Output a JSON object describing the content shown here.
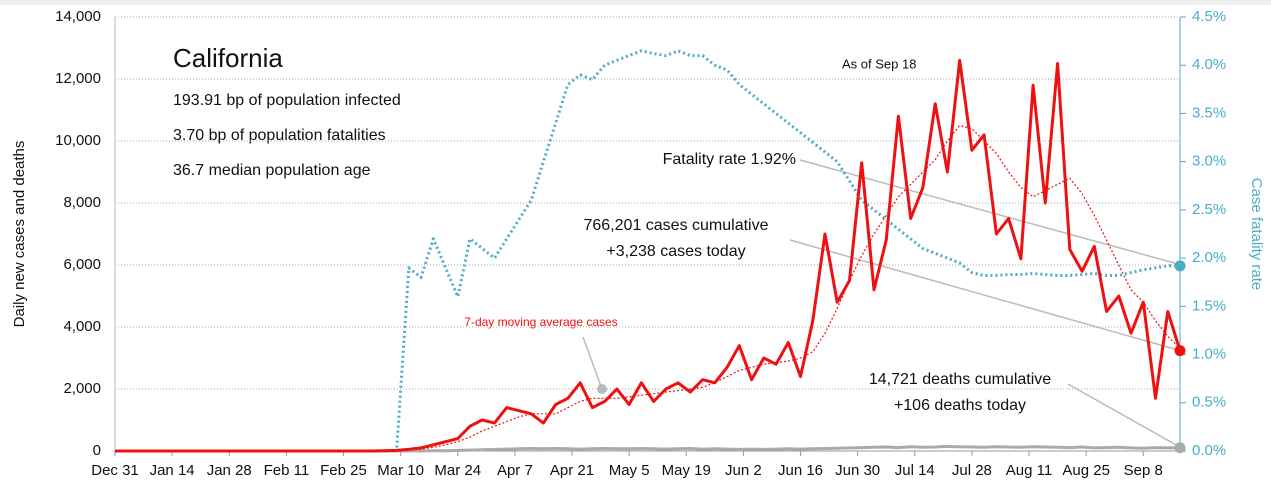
{
  "chart_data": {
    "type": "line",
    "title": "California",
    "subtitle_lines": [
      "193.91 bp of population infected",
      "3.70 bp of population fatalities",
      "36.7 median population age"
    ],
    "as_of": "As of Sep 18",
    "annotations": {
      "fatality": "Fatality rate 1.92%",
      "cases_cum": "766,201 cases cumulative",
      "cases_today": "+3,238 cases today",
      "deaths_cum": "14,721 deaths cumulative",
      "deaths_today": "+106 deaths today",
      "avg": "7-day moving average cases"
    },
    "ylabel": "Daily new cases and deaths",
    "y2label": "Case fatality rate",
    "x": [
      0,
      3,
      6,
      9,
      12,
      15,
      18,
      21,
      24,
      27,
      30,
      33,
      36,
      39,
      42,
      45,
      48,
      51,
      54,
      57,
      60,
      63,
      66,
      69,
      72,
      75,
      78,
      81,
      84,
      87,
      90,
      93,
      96,
      99,
      102,
      105,
      108,
      111,
      114,
      117,
      120,
      123,
      126,
      129,
      132,
      135,
      138,
      141,
      144,
      147,
      150,
      153,
      156,
      159,
      162,
      165,
      168,
      171,
      174,
      177,
      180,
      183,
      186,
      189,
      192,
      195,
      198,
      201,
      204,
      207,
      210,
      213,
      216,
      219,
      222,
      225,
      228,
      231,
      234,
      237,
      240,
      243,
      246,
      249,
      252,
      255,
      258,
      261
    ],
    "xlim": [
      0,
      261
    ],
    "xticks": [
      {
        "value": 0,
        "label": "Dec 31"
      },
      {
        "value": 14,
        "label": "Jan 14"
      },
      {
        "value": 28,
        "label": "Jan 28"
      },
      {
        "value": 42,
        "label": "Feb 11"
      },
      {
        "value": 56,
        "label": "Feb 25"
      },
      {
        "value": 70,
        "label": "Mar 10"
      },
      {
        "value": 84,
        "label": "Mar 24"
      },
      {
        "value": 98,
        "label": "Apr 7"
      },
      {
        "value": 112,
        "label": "Apr 21"
      },
      {
        "value": 126,
        "label": "May 5"
      },
      {
        "value": 140,
        "label": "May 19"
      },
      {
        "value": 154,
        "label": "Jun 2"
      },
      {
        "value": 168,
        "label": "Jun 16"
      },
      {
        "value": 182,
        "label": "Jun 30"
      },
      {
        "value": 196,
        "label": "Jul 14"
      },
      {
        "value": 210,
        "label": "Jul 28"
      },
      {
        "value": 224,
        "label": "Aug 11"
      },
      {
        "value": 238,
        "label": "Aug 25"
      },
      {
        "value": 252,
        "label": "Sep 8"
      }
    ],
    "ylim": [
      0,
      14000
    ],
    "yticks": [
      0,
      {
        "value": 2000,
        "label": "2,000"
      },
      {
        "value": 4000,
        "label": "4,000"
      },
      {
        "value": 6000,
        "label": "6,000"
      },
      {
        "value": 8000,
        "label": "8,000"
      },
      {
        "value": 10000,
        "label": "10,000"
      },
      {
        "value": 12000,
        "label": "12,000"
      },
      {
        "value": 14000,
        "label": "14,000"
      }
    ],
    "y2lim": [
      0,
      4.5
    ],
    "y2ticks": [
      {
        "value": 0,
        "label": "0.0%"
      },
      {
        "value": 0.5,
        "label": "0.5%"
      },
      {
        "value": 1,
        "label": "1.0%"
      },
      {
        "value": 1.5,
        "label": "1.5%"
      },
      {
        "value": 2,
        "label": "2.0%"
      },
      {
        "value": 2.5,
        "label": "2.5%"
      },
      {
        "value": 3,
        "label": "3.0%"
      },
      {
        "value": 3.5,
        "label": "3.5%"
      },
      {
        "value": 4,
        "label": "4.0%"
      },
      {
        "value": 4.5,
        "label": "4.5%"
      }
    ],
    "grid": true,
    "series": [
      {
        "name": "Case fatality rate",
        "color": "#4bacc6",
        "style": "dotted",
        "axis": "y2",
        "end_marker": true,
        "values": [
          0,
          0,
          0,
          0,
          0,
          0,
          0,
          0,
          0,
          0,
          0,
          0,
          0,
          0,
          0,
          0,
          0,
          0,
          0,
          0,
          0,
          0,
          0,
          0,
          1.9,
          1.8,
          2.2,
          1.9,
          1.6,
          2.2,
          2.1,
          2.0,
          2.2,
          2.4,
          2.6,
          3.0,
          3.4,
          3.8,
          3.9,
          3.85,
          4.0,
          4.05,
          4.1,
          4.15,
          4.12,
          4.1,
          4.15,
          4.1,
          4.1,
          4.0,
          3.95,
          3.8,
          3.7,
          3.6,
          3.5,
          3.4,
          3.3,
          3.2,
          3.1,
          3.0,
          2.8,
          2.6,
          2.5,
          2.4,
          2.3,
          2.2,
          2.1,
          2.05,
          2.0,
          1.95,
          1.85,
          1.82,
          1.82,
          1.83,
          1.83,
          1.84,
          1.83,
          1.82,
          1.82,
          1.83,
          1.84,
          1.82,
          1.82,
          1.85,
          1.88,
          1.9,
          1.92,
          1.92
        ]
      },
      {
        "name": "Daily deaths",
        "color": "#aaaaaa",
        "style": "solid",
        "end_marker": true,
        "values": [
          0,
          0,
          0,
          0,
          0,
          0,
          0,
          0,
          0,
          0,
          0,
          0,
          0,
          0,
          0,
          0,
          0,
          0,
          0,
          0,
          0,
          0,
          0,
          0,
          1,
          3,
          5,
          10,
          20,
          30,
          40,
          50,
          60,
          70,
          80,
          70,
          80,
          70,
          60,
          70,
          80,
          70,
          70,
          80,
          70,
          60,
          70,
          80,
          60,
          70,
          60,
          50,
          60,
          50,
          60,
          70,
          60,
          70,
          80,
          90,
          100,
          110,
          120,
          130,
          110,
          140,
          120,
          130,
          150,
          140,
          130,
          120,
          140,
          130,
          120,
          140,
          130,
          120,
          110,
          130,
          100,
          110,
          120,
          100,
          90,
          110,
          100,
          106
        ]
      },
      {
        "name": "7-day moving average cases",
        "color": "#ee1111",
        "style": "dotted-thin",
        "end_marker": false,
        "values": [
          0,
          0,
          0,
          0,
          0,
          0,
          0,
          0,
          0,
          0,
          0,
          0,
          0,
          0,
          0,
          0,
          0,
          0,
          0,
          0,
          0,
          0,
          5,
          10,
          30,
          60,
          120,
          200,
          300,
          450,
          650,
          800,
          950,
          1100,
          1200,
          1200,
          1200,
          1400,
          1600,
          1700,
          1700,
          1700,
          1750,
          1800,
          1850,
          1900,
          1950,
          2000,
          2050,
          2200,
          2400,
          2600,
          2700,
          2800,
          2850,
          2900,
          3000,
          3200,
          3800,
          4600,
          5500,
          6300,
          7000,
          7600,
          8200,
          8600,
          9000,
          9400,
          10000,
          10500,
          10400,
          10000,
          9600,
          9000,
          8500,
          8200,
          8400,
          8600,
          8800,
          8300,
          7600,
          6800,
          6000,
          5200,
          4800,
          4200,
          3700,
          3300
        ]
      },
      {
        "name": "Daily cases",
        "color": "#ee1111",
        "style": "solid",
        "end_marker": true,
        "values": [
          0,
          0,
          0,
          0,
          0,
          0,
          0,
          0,
          0,
          0,
          0,
          0,
          0,
          0,
          0,
          0,
          0,
          0,
          0,
          0,
          0,
          0,
          10,
          20,
          50,
          100,
          200,
          300,
          400,
          800,
          1000,
          900,
          1400,
          1300,
          1200,
          900,
          1500,
          1700,
          2200,
          1400,
          1600,
          2000,
          1500,
          2200,
          1600,
          2000,
          2200,
          1900,
          2300,
          2200,
          2700,
          3400,
          2300,
          3000,
          2800,
          3500,
          2400,
          4200,
          7000,
          4800,
          5500,
          9300,
          5200,
          6800,
          10800,
          7500,
          8500,
          11200,
          9000,
          12600,
          9700,
          10200,
          7000,
          7500,
          6200,
          11800,
          8000,
          12500,
          6500,
          5800,
          6600,
          4500,
          5000,
          3800,
          4800,
          1700,
          4500,
          3238
        ]
      }
    ]
  }
}
